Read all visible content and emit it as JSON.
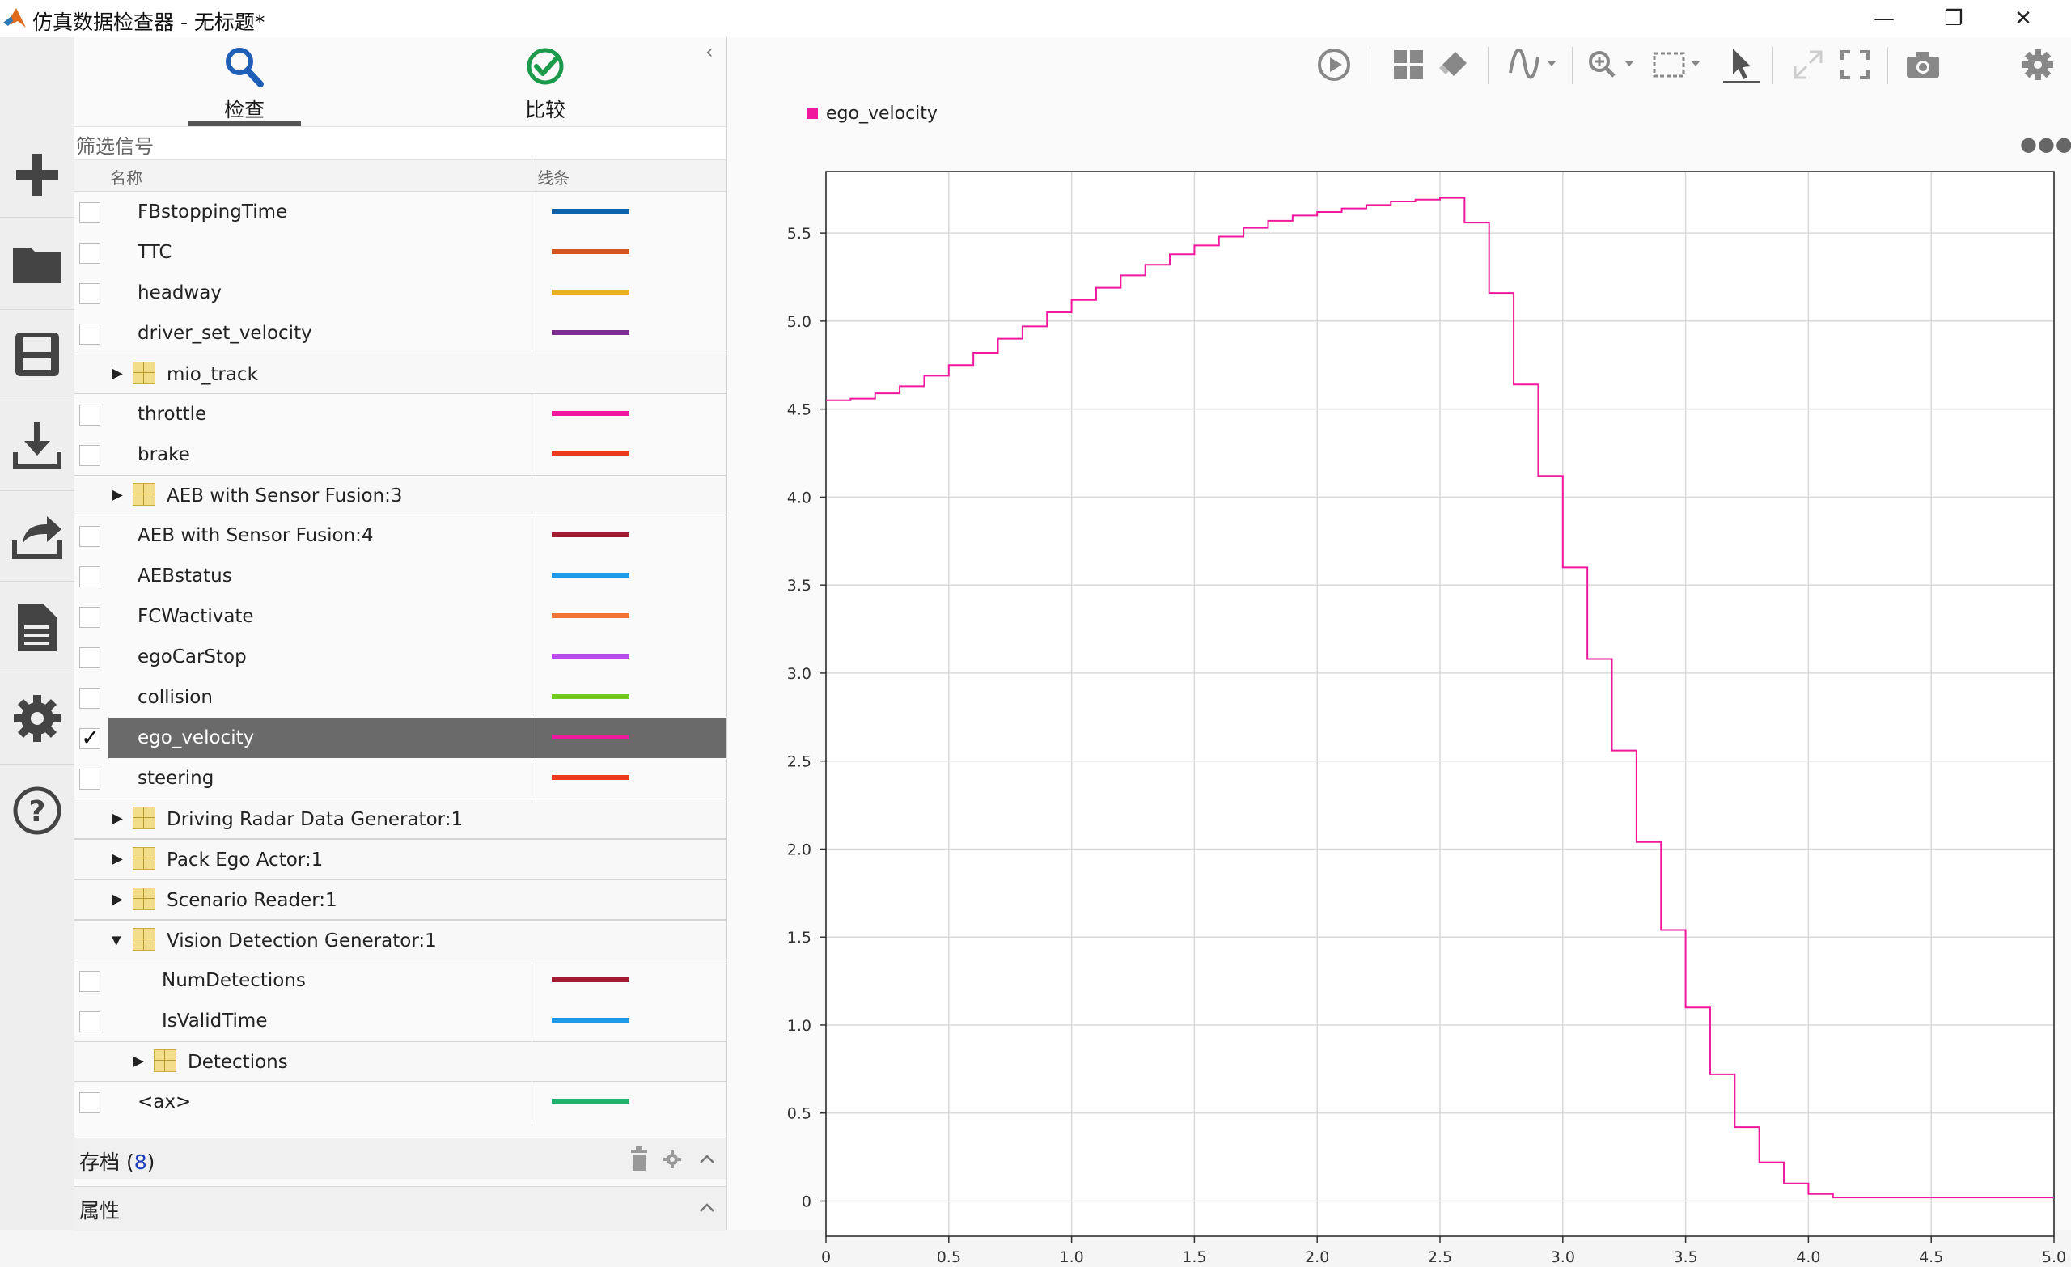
{
  "window": {
    "title": "仿真数据检查器 - 无标题*",
    "minimize": "—",
    "restore": "❐",
    "close": "✕"
  },
  "left_rail": {
    "icons": [
      "plus-icon",
      "folder-icon",
      "save-icon",
      "download-icon",
      "share-icon",
      "document-icon",
      "gear-icon",
      "help-icon"
    ]
  },
  "inspector": {
    "tabs": [
      {
        "label": "检查",
        "icon": "magnifier-icon",
        "active": true
      },
      {
        "label": "比较",
        "icon": "check-circle-icon",
        "active": false
      }
    ],
    "filter_placeholder": "筛选信号",
    "columns": {
      "name": "名称",
      "line": "线条"
    },
    "rows": [
      {
        "type": "signal",
        "name": "FBstoppingTime",
        "color": "#0e63ad",
        "checked": false,
        "indent": 1
      },
      {
        "type": "signal",
        "name": "TTC",
        "color": "#d6541f",
        "checked": false,
        "indent": 1
      },
      {
        "type": "signal",
        "name": "headway",
        "color": "#e9b120",
        "checked": false,
        "indent": 1
      },
      {
        "type": "signal",
        "name": "driver_set_velocity",
        "color": "#7d2e8e",
        "checked": false,
        "indent": 1
      },
      {
        "type": "group",
        "name": "mio_track",
        "expanded": false,
        "indent": 0
      },
      {
        "type": "signal",
        "name": "throttle",
        "color": "#f0189c",
        "checked": false,
        "indent": 1
      },
      {
        "type": "signal",
        "name": "brake",
        "color": "#ee3a1c",
        "checked": false,
        "indent": 1
      },
      {
        "type": "group",
        "name": "AEB with Sensor Fusion:3",
        "expanded": false,
        "indent": 0
      },
      {
        "type": "signal",
        "name": "AEB with Sensor Fusion:4",
        "color": "#a31a33",
        "checked": false,
        "indent": 1
      },
      {
        "type": "signal",
        "name": "AEBstatus",
        "color": "#1f9ae8",
        "checked": false,
        "indent": 1
      },
      {
        "type": "signal",
        "name": "FCWactivate",
        "color": "#f27536",
        "checked": false,
        "indent": 1
      },
      {
        "type": "signal",
        "name": "egoCarStop",
        "color": "#b84bec",
        "checked": false,
        "indent": 1
      },
      {
        "type": "signal",
        "name": "collision",
        "color": "#6fcc1f",
        "checked": false,
        "indent": 1
      },
      {
        "type": "signal",
        "name": "ego_velocity",
        "color": "#f0189c",
        "checked": true,
        "selected": true,
        "indent": 1
      },
      {
        "type": "signal",
        "name": "steering",
        "color": "#ee3a1c",
        "checked": false,
        "indent": 1
      },
      {
        "type": "group",
        "name": "Driving Radar Data Generator:1",
        "expanded": false,
        "indent": 0
      },
      {
        "type": "group",
        "name": "Pack Ego Actor:1",
        "expanded": false,
        "indent": 0
      },
      {
        "type": "group",
        "name": "Scenario Reader:1",
        "expanded": false,
        "indent": 0
      },
      {
        "type": "group",
        "name": "Vision Detection Generator:1",
        "expanded": true,
        "indent": 0
      },
      {
        "type": "signal",
        "name": "NumDetections",
        "color": "#a31a33",
        "checked": false,
        "indent": 2
      },
      {
        "type": "signal",
        "name": "IsValidTime",
        "color": "#1f9ae8",
        "checked": false,
        "indent": 2
      },
      {
        "type": "group",
        "name": "Detections",
        "expanded": false,
        "indent": 1
      },
      {
        "type": "signal",
        "name": "<ax>",
        "color": "#23b26e",
        "checked": false,
        "indent": 1
      }
    ],
    "archive": {
      "label": "存档",
      "count_open": "(",
      "count": "8",
      "count_close": ")"
    },
    "properties": {
      "label": "属性"
    }
  },
  "toolbar": {
    "icons": [
      "play-icon",
      "layout-grid-icon",
      "eraser-icon",
      "signal-wave-icon",
      "zoom-in-icon",
      "fit-to-view-icon",
      "cursor-icon",
      "expand-icon",
      "fullscreen-icon",
      "camera-icon",
      "settings-icon"
    ]
  },
  "chart_data": {
    "type": "line",
    "style": "stairs",
    "legend": [
      {
        "name": "ego_velocity",
        "color": "#f0189c"
      }
    ],
    "legend_placement": "top-left",
    "grid": true,
    "xlim": [
      0,
      5.0
    ],
    "ylim": [
      -0.2,
      5.85
    ],
    "x_ticks": [
      "0",
      "0.5",
      "1.0",
      "1.5",
      "2.0",
      "2.5",
      "3.0",
      "3.5",
      "4.0",
      "4.5",
      "5.0"
    ],
    "y_ticks": [
      "0",
      "0.5",
      "1.0",
      "1.5",
      "2.0",
      "2.5",
      "3.0",
      "3.5",
      "4.0",
      "4.5",
      "5.0",
      "5.5"
    ],
    "series": [
      {
        "name": "ego_velocity",
        "color": "#f0189c",
        "x": [
          0,
          0.1,
          0.2,
          0.3,
          0.4,
          0.5,
          0.6,
          0.7,
          0.8,
          0.9,
          1.0,
          1.1,
          1.2,
          1.3,
          1.4,
          1.5,
          1.6,
          1.7,
          1.8,
          1.9,
          2.0,
          2.1,
          2.2,
          2.3,
          2.4,
          2.5,
          2.6,
          2.7,
          2.8,
          2.9,
          3.0,
          3.1,
          3.2,
          3.3,
          3.4,
          3.5,
          3.6,
          3.7,
          3.8,
          3.9,
          4.0,
          4.1,
          5.0
        ],
        "y": [
          4.55,
          4.56,
          4.59,
          4.63,
          4.69,
          4.75,
          4.82,
          4.9,
          4.97,
          5.05,
          5.12,
          5.19,
          5.26,
          5.32,
          5.38,
          5.43,
          5.48,
          5.53,
          5.57,
          5.6,
          5.62,
          5.64,
          5.66,
          5.68,
          5.69,
          5.7,
          5.56,
          5.16,
          4.64,
          4.12,
          3.6,
          3.08,
          2.56,
          2.04,
          1.54,
          1.1,
          0.72,
          0.42,
          0.22,
          0.1,
          0.04,
          0.02,
          0.02
        ]
      }
    ]
  }
}
